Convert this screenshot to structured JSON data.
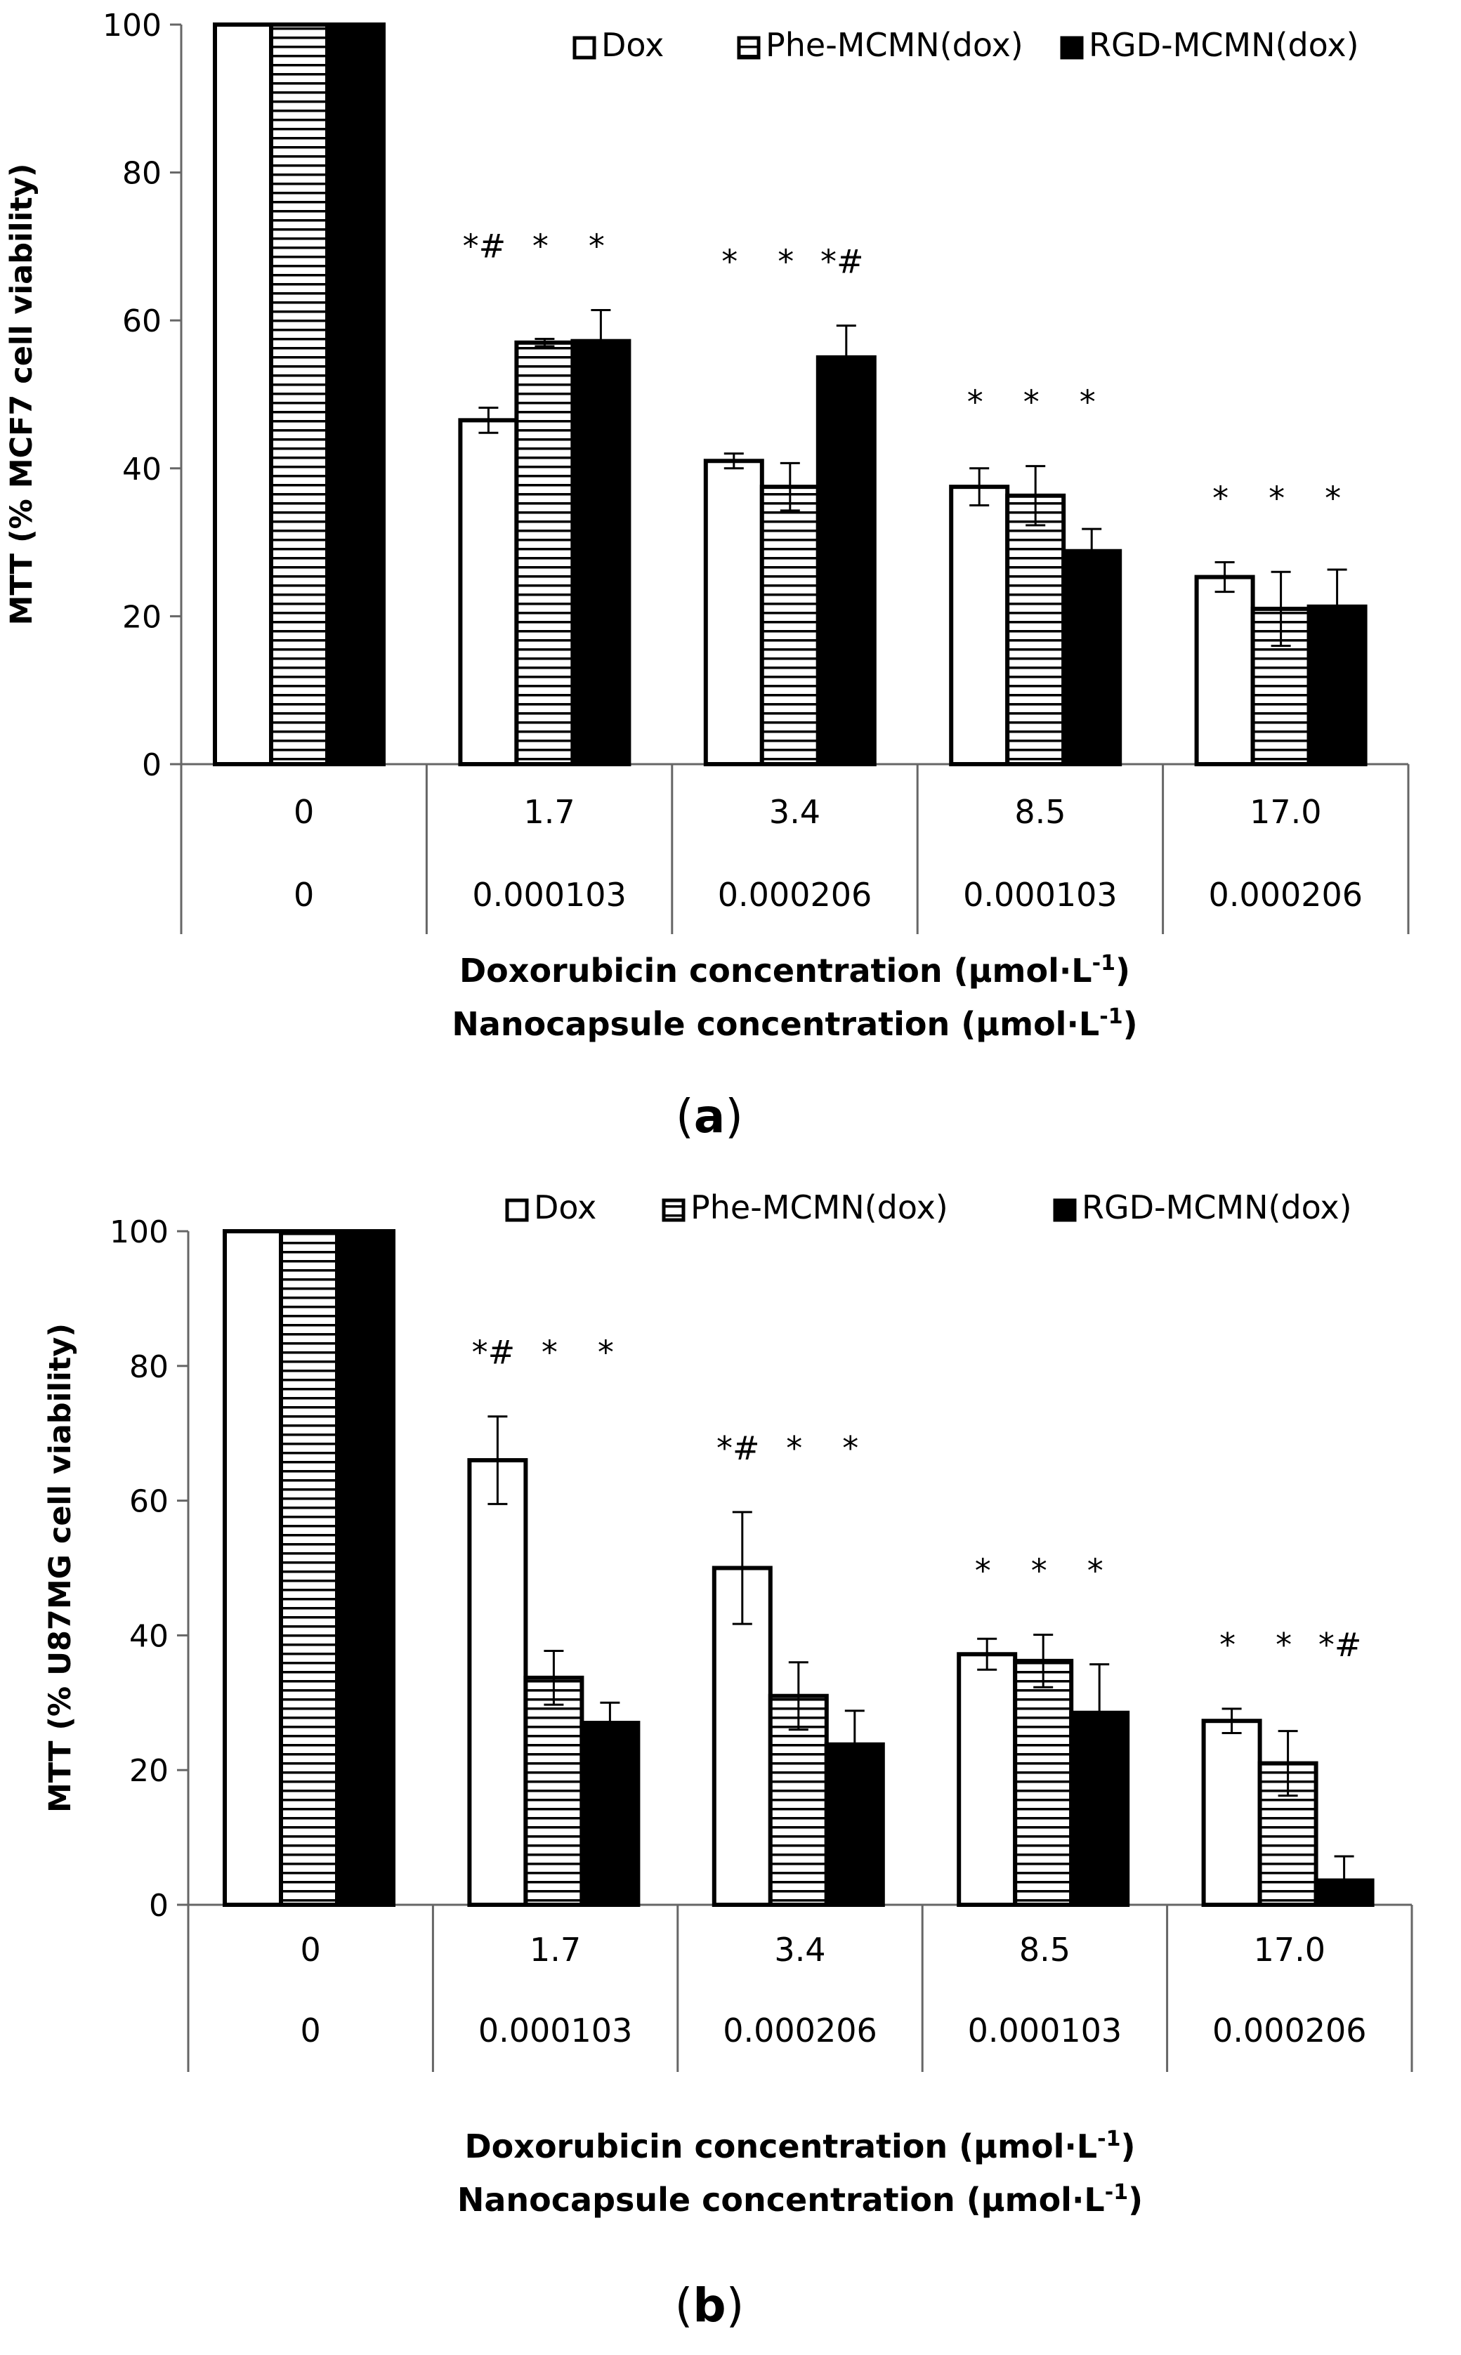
{
  "chart_data": [
    {
      "type": "bar",
      "panel_label": "(a)",
      "ylabel": "MTT (% MCF7 cell viability)",
      "ylim": [
        0,
        100
      ],
      "yticks": [
        0,
        20,
        40,
        60,
        80,
        100
      ],
      "grid": false,
      "legend_position": "top-right",
      "categories_row1": [
        "0",
        "1.7",
        "3.4",
        "8.5",
        "17.0"
      ],
      "categories_row2": [
        "0",
        "0.000103",
        "0.000206",
        "0.000103",
        "0.000206"
      ],
      "xlabel_line1": "Doxorubicin concentration (μmol·L",
      "xlabel_line2": "Nanocapsule concentration (μmol·L",
      "xlabel_sup": "-1",
      "xlabel_close": ")",
      "series": [
        {
          "name": "Dox",
          "style": "open",
          "values": [
            100,
            46.5,
            41,
            37.5,
            25.3
          ],
          "errors": [
            0,
            1.7,
            1.0,
            2.5,
            2.0
          ]
        },
        {
          "name": "Phe-MCMN(dox)",
          "style": "striped",
          "values": [
            100,
            57,
            37.5,
            36.3,
            21
          ],
          "errors": [
            0,
            0.5,
            3.2,
            4.0,
            5.0
          ]
        },
        {
          "name": "RGD-MCMN(dox)",
          "style": "solid",
          "values": [
            100,
            57.2,
            55,
            28.8,
            21.3
          ],
          "errors": [
            0,
            4.2,
            4.3,
            3.0,
            5.0
          ]
        }
      ],
      "annotations": [
        [
          "",
          "",
          ""
        ],
        [
          "*#",
          "*",
          "*"
        ],
        [
          "*",
          "*",
          "*#"
        ],
        [
          "*",
          "*",
          "*"
        ],
        [
          "*",
          "*",
          "*"
        ]
      ]
    },
    {
      "type": "bar",
      "panel_label": "(b)",
      "ylabel": "MTT (% U87MG cell viability)",
      "ylim": [
        0,
        100
      ],
      "yticks": [
        0,
        20,
        40,
        60,
        80,
        100
      ],
      "grid": false,
      "legend_position": "top-right",
      "categories_row1": [
        "0",
        "1.7",
        "3.4",
        "8.5",
        "17.0"
      ],
      "categories_row2": [
        "0",
        "0.000103",
        "0.000206",
        "0.000103",
        "0.000206"
      ],
      "xlabel_line1": "Doxorubicin concentration (μmol·L",
      "xlabel_line2": "Nanocapsule concentration (μmol·L",
      "xlabel_sup": "-1",
      "xlabel_close": ")",
      "series": [
        {
          "name": "Dox",
          "style": "open",
          "values": [
            100,
            66,
            50,
            37.2,
            27.3
          ],
          "errors": [
            0,
            6.5,
            8.3,
            2.3,
            1.8
          ]
        },
        {
          "name": "Phe-MCMN(dox)",
          "style": "striped",
          "values": [
            100,
            33.7,
            31,
            36.2,
            21
          ],
          "errors": [
            0,
            4.0,
            5.0,
            3.9,
            4.8
          ]
        },
        {
          "name": "RGD-MCMN(dox)",
          "style": "solid",
          "values": [
            100,
            27,
            23.8,
            28.5,
            3.6
          ],
          "errors": [
            0,
            3.0,
            5.0,
            7.2,
            3.6
          ]
        }
      ],
      "annotations": [
        [
          "",
          "",
          ""
        ],
        [
          "*#",
          "*",
          "*"
        ],
        [
          "*#",
          "*",
          "*"
        ],
        [
          "*",
          "*",
          "*"
        ],
        [
          "*",
          "*",
          "*#"
        ]
      ]
    }
  ]
}
